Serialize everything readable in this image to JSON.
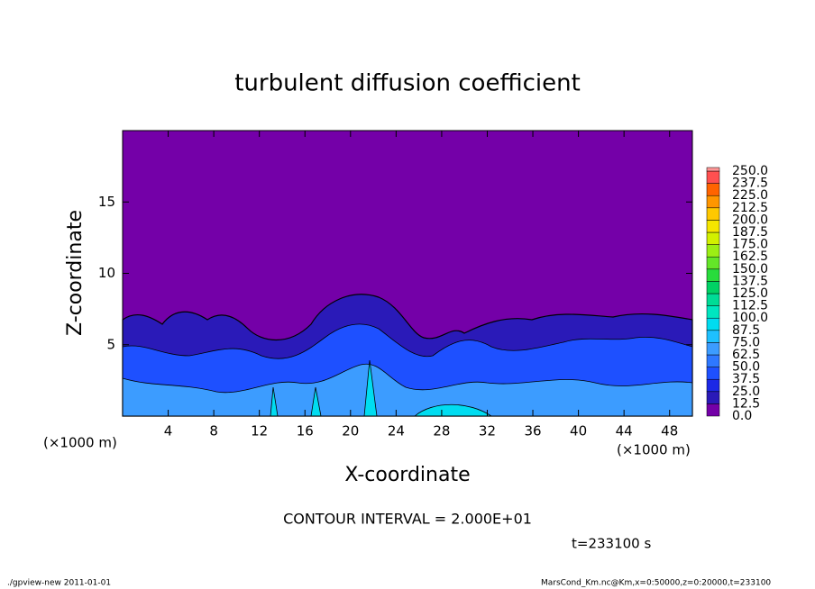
{
  "chart_data": {
    "type": "contour",
    "title": "turbulent diffusion coefficient",
    "xlabel": "X-coordinate",
    "ylabel": "Z-coordinate",
    "x_unit": "(×1000 m)",
    "xlim": [
      0,
      50
    ],
    "xticks": [
      4,
      8,
      12,
      16,
      20,
      24,
      28,
      32,
      36,
      40,
      44,
      48
    ],
    "ylim": [
      0,
      20
    ],
    "yticks": [
      5,
      10,
      15
    ],
    "levels": [
      {
        "value": 0,
        "label": "0.0"
      },
      12.5,
      {
        "value": 25,
        "label": "25.0"
      },
      37.5,
      {
        "value": 50,
        "label": "50.0"
      },
      62.5,
      {
        "value": 75,
        "label": "75.0"
      },
      87.5,
      {
        "value": 100,
        "label": "100.0"
      },
      112.5,
      {
        "value": 125,
        "label": "125.0"
      },
      137.5,
      {
        "value": 150,
        "label": "150.0"
      },
      162.5,
      {
        "value": 175,
        "label": "175.0"
      },
      187.5,
      {
        "value": 200,
        "label": "200.0"
      },
      212.5,
      {
        "value": 225,
        "label": "225.0"
      },
      237.5,
      {
        "value": 250,
        "label": "250.0"
      }
    ],
    "colors": [
      "#7400a8",
      "#2a1ab8",
      "#1c28e6",
      "#1e50ff",
      "#2e78ff",
      "#3c9cff",
      "#1ec0ff",
      "#00dcf0",
      "#00e6c0",
      "#00dc96",
      "#00d264",
      "#28dc3c",
      "#64e628",
      "#9cee14",
      "#d2f000",
      "#f5e600",
      "#ffc800",
      "#ff9600",
      "#ff6400",
      "#ff5050",
      "#ff9696"
    ],
    "contour_interval": "CONTOUR INTERVAL = 2.000E+01",
    "time": "t=233100 s",
    "footer_left": "./gpview-new   2011-01-01",
    "footer_right": "MarsCond_Km.nc@Km,x=0:50000,z=0:20000,t=233100"
  }
}
